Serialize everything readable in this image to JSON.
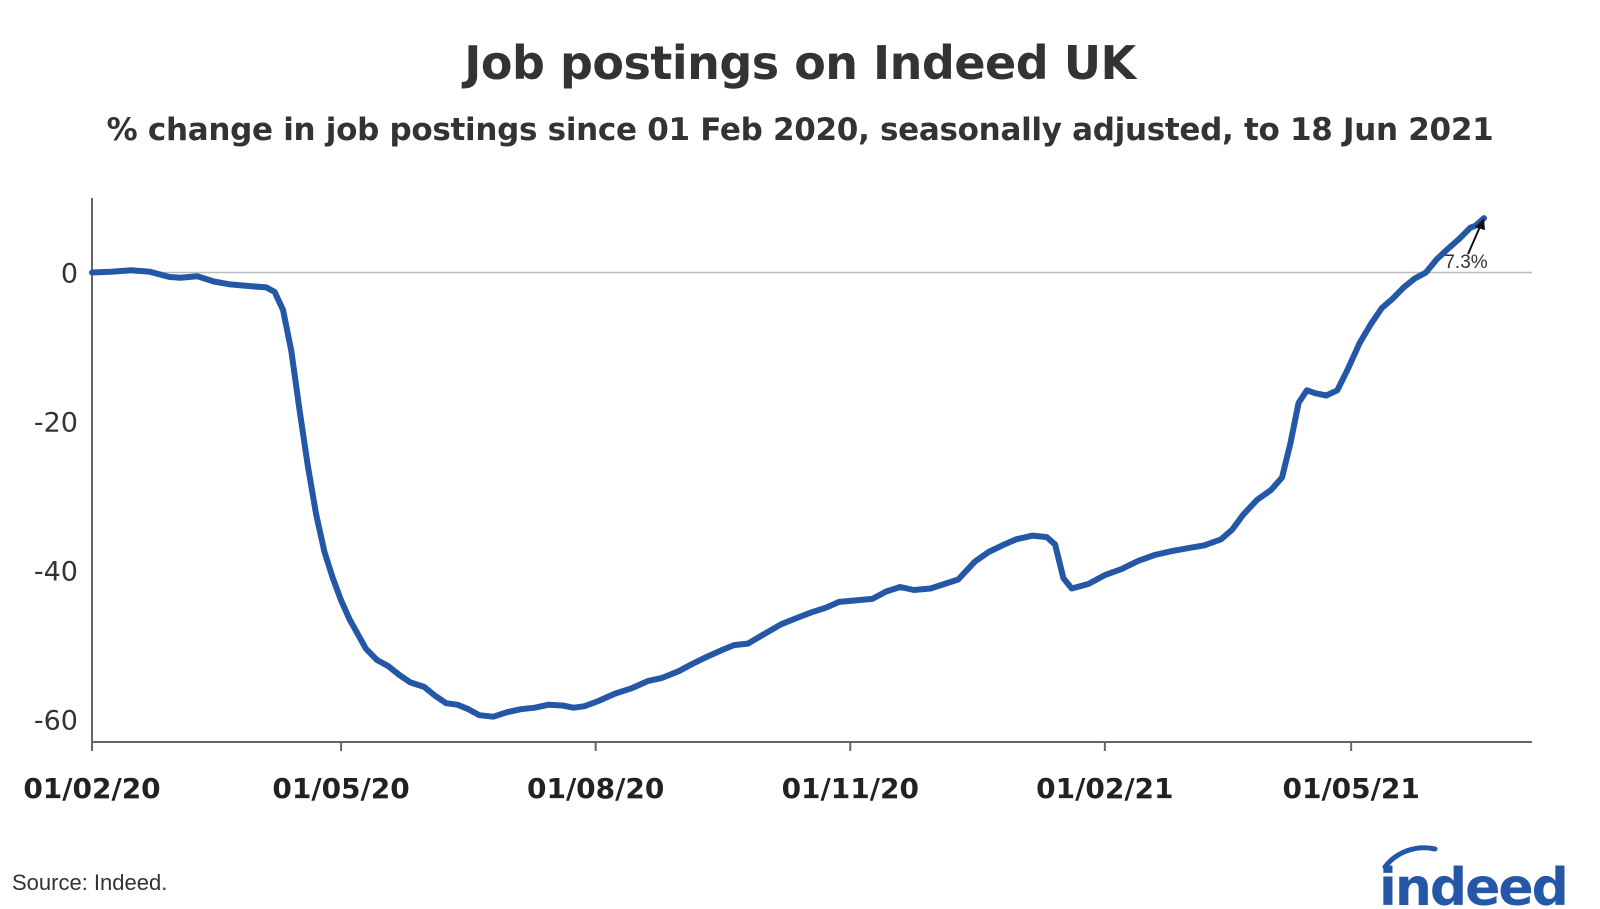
{
  "chart_data": {
    "type": "line",
    "title": "Job postings on Indeed UK",
    "subtitle": "% change in job postings since 01 Feb 2020, seasonally adjusted, to 18 Jun 2021",
    "xlabel": "",
    "ylabel": "",
    "x_range": [
      "2020-02-01",
      "2021-06-18"
    ],
    "ylim": [
      -63,
      10
    ],
    "y_ticks": [
      0,
      -20,
      -40,
      -60
    ],
    "x_ticks": [
      {
        "date": "2020-02-01",
        "label": "01/02/20"
      },
      {
        "date": "2020-05-01",
        "label": "01/05/20"
      },
      {
        "date": "2020-08-01",
        "label": "01/08/20"
      },
      {
        "date": "2020-11-01",
        "label": "01/11/20"
      },
      {
        "date": "2021-02-01",
        "label": "01/02/21"
      },
      {
        "date": "2021-05-01",
        "label": "01/05/21"
      }
    ],
    "grid": false,
    "reference_line": 0,
    "series": [
      {
        "name": "",
        "color": "#2557a7",
        "points": [
          [
            "2020-02-01",
            0.0
          ],
          [
            "2020-02-08",
            0.1
          ],
          [
            "2020-02-15",
            0.3
          ],
          [
            "2020-02-22",
            0.1
          ],
          [
            "2020-02-29",
            -0.6
          ],
          [
            "2020-03-04",
            -0.7
          ],
          [
            "2020-03-10",
            -0.5
          ],
          [
            "2020-03-16",
            -1.2
          ],
          [
            "2020-03-22",
            -1.6
          ],
          [
            "2020-03-28",
            -1.8
          ],
          [
            "2020-04-04",
            -2.0
          ],
          [
            "2020-04-07",
            -2.6
          ],
          [
            "2020-04-10",
            -5.0
          ],
          [
            "2020-04-13",
            -10.5
          ],
          [
            "2020-04-16",
            -18.5
          ],
          [
            "2020-04-19",
            -26.0
          ],
          [
            "2020-04-22",
            -32.5
          ],
          [
            "2020-04-25",
            -37.5
          ],
          [
            "2020-04-28",
            -41.0
          ],
          [
            "2020-05-01",
            -44.0
          ],
          [
            "2020-05-04",
            -46.5
          ],
          [
            "2020-05-07",
            -48.5
          ],
          [
            "2020-05-10",
            -50.5
          ],
          [
            "2020-05-14",
            -52.0
          ],
          [
            "2020-05-18",
            -52.8
          ],
          [
            "2020-05-22",
            -54.0
          ],
          [
            "2020-05-26",
            -55.0
          ],
          [
            "2020-05-31",
            -55.6
          ],
          [
            "2020-06-04",
            -56.8
          ],
          [
            "2020-06-08",
            -57.8
          ],
          [
            "2020-06-12",
            -58.0
          ],
          [
            "2020-06-16",
            -58.6
          ],
          [
            "2020-06-20",
            -59.4
          ],
          [
            "2020-06-25",
            -59.6
          ],
          [
            "2020-06-30",
            -59.0
          ],
          [
            "2020-07-05",
            -58.6
          ],
          [
            "2020-07-10",
            -58.4
          ],
          [
            "2020-07-15",
            -58.0
          ],
          [
            "2020-07-20",
            -58.1
          ],
          [
            "2020-07-24",
            -58.4
          ],
          [
            "2020-07-28",
            -58.2
          ],
          [
            "2020-08-02",
            -57.5
          ],
          [
            "2020-08-08",
            -56.5
          ],
          [
            "2020-08-14",
            -55.8
          ],
          [
            "2020-08-20",
            -54.8
          ],
          [
            "2020-08-25",
            -54.4
          ],
          [
            "2020-08-31",
            -53.5
          ],
          [
            "2020-09-05",
            -52.5
          ],
          [
            "2020-09-10",
            -51.6
          ],
          [
            "2020-09-16",
            -50.6
          ],
          [
            "2020-09-20",
            -50.0
          ],
          [
            "2020-09-25",
            -49.8
          ],
          [
            "2020-10-01",
            -48.5
          ],
          [
            "2020-10-07",
            -47.2
          ],
          [
            "2020-10-13",
            -46.3
          ],
          [
            "2020-10-18",
            -45.6
          ],
          [
            "2020-10-23",
            -45.0
          ],
          [
            "2020-10-28",
            -44.2
          ],
          [
            "2020-11-03",
            -44.0
          ],
          [
            "2020-11-09",
            -43.8
          ],
          [
            "2020-11-14",
            -42.8
          ],
          [
            "2020-11-19",
            -42.2
          ],
          [
            "2020-11-24",
            -42.6
          ],
          [
            "2020-11-30",
            -42.4
          ],
          [
            "2020-12-05",
            -41.8
          ],
          [
            "2020-12-10",
            -41.2
          ],
          [
            "2020-12-16",
            -38.8
          ],
          [
            "2020-12-21",
            -37.5
          ],
          [
            "2020-12-26",
            -36.6
          ],
          [
            "2020-12-31",
            -35.8
          ],
          [
            "2021-01-06",
            -35.3
          ],
          [
            "2021-01-11",
            -35.5
          ],
          [
            "2021-01-14",
            -36.5
          ],
          [
            "2021-01-17",
            -41.0
          ],
          [
            "2021-01-20",
            -42.4
          ],
          [
            "2021-01-26",
            -41.8
          ],
          [
            "2021-02-01",
            -40.6
          ],
          [
            "2021-02-07",
            -39.8
          ],
          [
            "2021-02-13",
            -38.7
          ],
          [
            "2021-02-19",
            -37.9
          ],
          [
            "2021-02-25",
            -37.4
          ],
          [
            "2021-03-03",
            -37.0
          ],
          [
            "2021-03-09",
            -36.6
          ],
          [
            "2021-03-15",
            -35.8
          ],
          [
            "2021-03-19",
            -34.5
          ],
          [
            "2021-03-23",
            -32.5
          ],
          [
            "2021-03-28",
            -30.5
          ],
          [
            "2021-04-02",
            -29.2
          ],
          [
            "2021-04-06",
            -27.5
          ],
          [
            "2021-04-09",
            -23.0
          ],
          [
            "2021-04-12",
            -17.5
          ],
          [
            "2021-04-15",
            -15.8
          ],
          [
            "2021-04-18",
            -16.2
          ],
          [
            "2021-04-22",
            -16.5
          ],
          [
            "2021-04-26",
            -15.8
          ],
          [
            "2021-04-30",
            -12.8
          ],
          [
            "2021-05-04",
            -9.5
          ],
          [
            "2021-05-08",
            -7.0
          ],
          [
            "2021-05-12",
            -4.8
          ],
          [
            "2021-05-16",
            -3.5
          ],
          [
            "2021-05-20",
            -2.0
          ],
          [
            "2021-05-24",
            -0.8
          ],
          [
            "2021-05-28",
            0.0
          ],
          [
            "2021-06-01",
            1.8
          ],
          [
            "2021-06-05",
            3.2
          ],
          [
            "2021-06-09",
            4.5
          ],
          [
            "2021-06-13",
            6.0
          ],
          [
            "2021-06-15",
            6.3
          ],
          [
            "2021-06-18",
            7.3
          ]
        ]
      }
    ],
    "annotation": {
      "text": "7.3%",
      "date": "2021-06-18",
      "value": 7.3
    }
  },
  "source": "Source: Indeed.",
  "logo_text": "indeed",
  "colors": {
    "line": "#2557a7",
    "axis": "#666666",
    "zero_line": "#bbbbbb",
    "text": "#333333"
  }
}
